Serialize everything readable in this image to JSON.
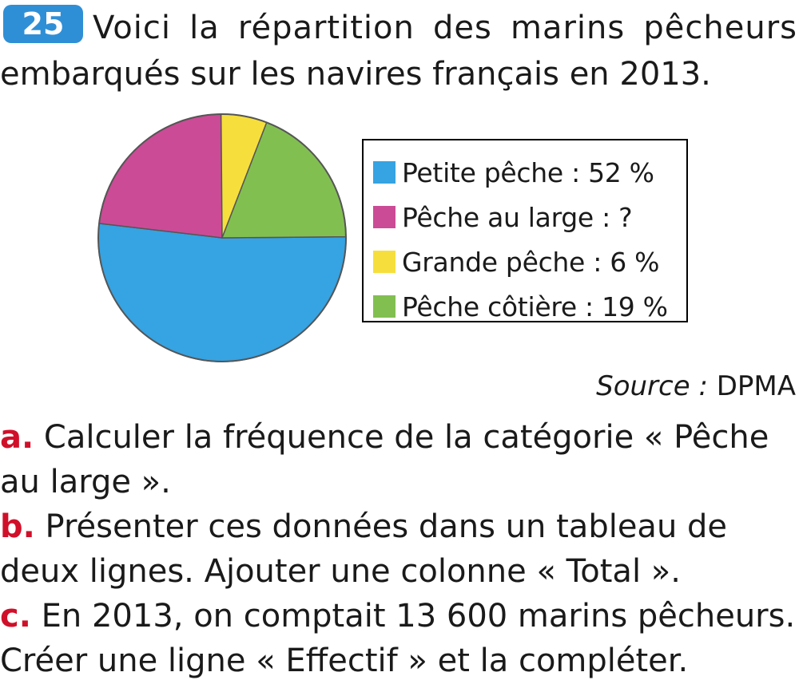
{
  "exercise": {
    "number": "25",
    "intro_line1": "Voici la répartition des marins pêcheurs",
    "intro_line2": "embarqués sur les navires français en 2013."
  },
  "chart_data": {
    "type": "pie",
    "title": "",
    "slices": [
      {
        "label": "Petite pêche : 52 %",
        "value": 52,
        "color": "#36a3e2"
      },
      {
        "label": "Pêche au large : ?",
        "value": 23,
        "color": "#cb4b96"
      },
      {
        "label": "Grande pêche : 6 %",
        "value": 6,
        "color": "#f6df3c"
      },
      {
        "label": "Pêche côtière : 19 %",
        "value": 19,
        "color": "#82bf51"
      }
    ],
    "legend_placement": "right",
    "source_label": "Source :",
    "source_value": "DPMA"
  },
  "questions": [
    {
      "letter": "a.",
      "text": "Calculer la fréquence de la catégorie « Pêche au large »."
    },
    {
      "letter": "b.",
      "text": "Présenter ces données dans un tableau de deux lignes. Ajouter une colonne « Total »."
    },
    {
      "letter": "c.",
      "text": "En 2013, on comptait 13 600 marins pêcheurs. Créer une ligne « Effectif » et la compléter."
    }
  ]
}
